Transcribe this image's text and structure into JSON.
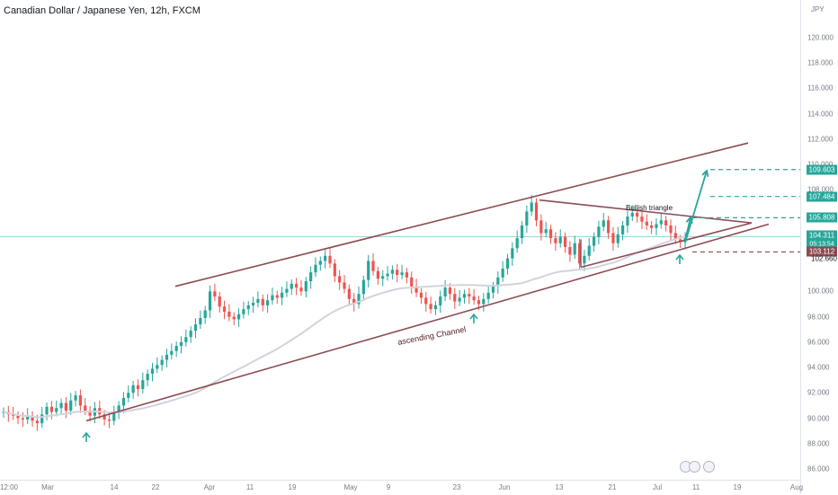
{
  "chart_title": "Canadian Dollar / Japanese Yen, 12h, FXCM",
  "currency": "JPY",
  "colors": {
    "up": "#26a69a",
    "down": "#ef5350",
    "trendline": "#8d4a52",
    "target": "#26a69a",
    "current_line": "#26a69a",
    "ma": "#d1d4dc"
  },
  "annotations": {
    "triangle_label": "Bullish triangle",
    "channel_label": "ascending Channel"
  },
  "price_labels": [
    {
      "value": "109.603",
      "style": "target"
    },
    {
      "value": "107.484",
      "style": "target"
    },
    {
      "value": "105.808",
      "style": "target"
    },
    {
      "value": "104.311",
      "style": "current"
    },
    {
      "value": "05:13:54",
      "style": "timer"
    },
    {
      "value": "103.112",
      "style": "stop"
    },
    {
      "value": "102.660",
      "style": "plain"
    }
  ],
  "chart_data": {
    "type": "candlestick",
    "title": "Canadian Dollar / Japanese Yen, 12h, FXCM",
    "ylabel": "JPY",
    "ylim": [
      85.5,
      122
    ],
    "y_ticks": [
      "120.000",
      "118.000",
      "116.000",
      "114.000",
      "112.000",
      "110.000",
      "108.000",
      "106.000",
      "100.000",
      "98.000",
      "96.000",
      "94.000",
      "92.000",
      "90.000",
      "88.000",
      "86.000"
    ],
    "x_ticks": [
      "12:00",
      "Mar",
      "14",
      "22",
      "Apr",
      "11",
      "19",
      "May",
      "9",
      "23",
      "Jun",
      "13",
      "21",
      "Jul",
      "11",
      "19",
      "Aug"
    ],
    "current_price": 104.311,
    "targets": [
      109.603,
      107.484,
      105.808
    ],
    "stop": 103.112,
    "moving_average_last": 102.66,
    "closes": [
      90.5,
      90.3,
      90.2,
      90.0,
      89.9,
      90.2,
      89.8,
      89.6,
      90.3,
      90.9,
      90.5,
      90.8,
      91.2,
      90.6,
      91.4,
      91.8,
      91.0,
      90.6,
      90.2,
      90.8,
      90.3,
      89.9,
      89.8,
      90.4,
      91.0,
      91.6,
      92.0,
      92.6,
      92.3,
      93.0,
      93.5,
      93.9,
      94.2,
      94.6,
      95.0,
      95.3,
      95.7,
      96.0,
      96.4,
      96.9,
      97.4,
      97.9,
      98.5,
      100.0,
      99.6,
      98.8,
      98.4,
      98.0,
      97.8,
      98.2,
      98.6,
      98.9,
      99.1,
      99.4,
      98.9,
      99.3,
      99.7,
      99.5,
      99.9,
      100.2,
      100.6,
      100.3,
      100.0,
      100.8,
      101.5,
      102.1,
      102.4,
      102.8,
      102.2,
      101.2,
      100.7,
      100.2,
      99.4,
      99.0,
      99.8,
      100.9,
      102.4,
      101.6,
      101.0,
      101.2,
      101.4,
      101.7,
      101.3,
      101.5,
      101.1,
      100.4,
      99.9,
      99.5,
      99.0,
      98.6,
      98.9,
      99.6,
      100.3,
      99.8,
      99.2,
      99.5,
      99.8,
      99.6,
      99.3,
      99.0,
      99.4,
      99.9,
      100.4,
      101.1,
      101.8,
      102.6,
      103.4,
      104.2,
      105.2,
      106.3,
      107.0,
      105.6,
      104.6,
      104.9,
      104.2,
      103.8,
      104.3,
      103.5,
      102.9,
      103.8,
      102.2,
      102.8,
      103.6,
      104.3,
      105.1,
      105.6,
      104.6,
      103.8,
      104.5,
      105.2,
      105.9,
      106.2,
      105.9,
      105.5,
      105.2,
      105.0,
      105.3,
      105.6,
      105.2,
      104.6,
      104.1,
      103.9,
      104.2
    ]
  }
}
